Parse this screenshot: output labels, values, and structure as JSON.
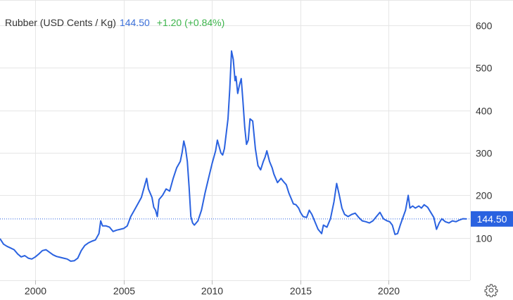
{
  "header": {
    "name": "Rubber (USD Cents / Kg)",
    "price": "144.50",
    "change": "+1.20 (+0.84%)"
  },
  "colors": {
    "line": "#2a62e0",
    "price_text": "#3b6fd8",
    "change_positive": "#3cb44b",
    "grid": "#e6e6e6",
    "label_bg": "#2a62e0",
    "label_text": "#ffffff",
    "axis_text": "#333333"
  },
  "settings_icon": "gear-icon",
  "chart_data": {
    "type": "line",
    "xlim": [
      1998,
      2024.6
    ],
    "ylim": [
      0,
      660
    ],
    "x_ticks": [
      2000,
      2005,
      2010,
      2015,
      2020
    ],
    "y_ticks": [
      100,
      200,
      300,
      400,
      500,
      600
    ],
    "grid": true,
    "y_axis_position": "right",
    "last_value_label": "144.50",
    "series": [
      {
        "points": [
          [
            1998.0,
            98
          ],
          [
            1998.2,
            85
          ],
          [
            1998.4,
            80
          ],
          [
            1998.6,
            76
          ],
          [
            1998.8,
            72
          ],
          [
            1999.0,
            62
          ],
          [
            1999.2,
            55
          ],
          [
            1999.4,
            58
          ],
          [
            1999.6,
            52
          ],
          [
            1999.8,
            50
          ],
          [
            2000.0,
            55
          ],
          [
            2000.2,
            62
          ],
          [
            2000.4,
            70
          ],
          [
            2000.6,
            72
          ],
          [
            2000.8,
            66
          ],
          [
            2001.0,
            60
          ],
          [
            2001.2,
            56
          ],
          [
            2001.4,
            54
          ],
          [
            2001.6,
            52
          ],
          [
            2001.8,
            50
          ],
          [
            2002.0,
            45
          ],
          [
            2002.2,
            46
          ],
          [
            2002.4,
            52
          ],
          [
            2002.6,
            70
          ],
          [
            2002.8,
            82
          ],
          [
            2003.0,
            88
          ],
          [
            2003.2,
            92
          ],
          [
            2003.4,
            95
          ],
          [
            2003.6,
            110
          ],
          [
            2003.7,
            140
          ],
          [
            2003.8,
            128
          ],
          [
            2004.0,
            128
          ],
          [
            2004.2,
            125
          ],
          [
            2004.4,
            115
          ],
          [
            2004.6,
            118
          ],
          [
            2004.8,
            120
          ],
          [
            2005.0,
            122
          ],
          [
            2005.2,
            128
          ],
          [
            2005.4,
            150
          ],
          [
            2005.6,
            165
          ],
          [
            2005.8,
            180
          ],
          [
            2006.0,
            195
          ],
          [
            2006.2,
            225
          ],
          [
            2006.3,
            240
          ],
          [
            2006.4,
            215
          ],
          [
            2006.6,
            195
          ],
          [
            2006.7,
            172
          ],
          [
            2006.8,
            165
          ],
          [
            2006.9,
            150
          ],
          [
            2007.0,
            190
          ],
          [
            2007.2,
            200
          ],
          [
            2007.4,
            215
          ],
          [
            2007.6,
            210
          ],
          [
            2007.8,
            240
          ],
          [
            2008.0,
            265
          ],
          [
            2008.2,
            280
          ],
          [
            2008.3,
            300
          ],
          [
            2008.4,
            328
          ],
          [
            2008.5,
            310
          ],
          [
            2008.6,
            280
          ],
          [
            2008.7,
            220
          ],
          [
            2008.8,
            150
          ],
          [
            2008.9,
            135
          ],
          [
            2009.0,
            130
          ],
          [
            2009.2,
            140
          ],
          [
            2009.4,
            165
          ],
          [
            2009.6,
            205
          ],
          [
            2009.8,
            240
          ],
          [
            2010.0,
            275
          ],
          [
            2010.2,
            305
          ],
          [
            2010.3,
            330
          ],
          [
            2010.5,
            300
          ],
          [
            2010.6,
            295
          ],
          [
            2010.7,
            310
          ],
          [
            2010.9,
            380
          ],
          [
            2011.0,
            450
          ],
          [
            2011.1,
            540
          ],
          [
            2011.2,
            520
          ],
          [
            2011.3,
            470
          ],
          [
            2011.35,
            480
          ],
          [
            2011.45,
            440
          ],
          [
            2011.55,
            460
          ],
          [
            2011.65,
            475
          ],
          [
            2011.75,
            420
          ],
          [
            2011.85,
            360
          ],
          [
            2011.95,
            320
          ],
          [
            2012.05,
            330
          ],
          [
            2012.15,
            380
          ],
          [
            2012.3,
            375
          ],
          [
            2012.45,
            310
          ],
          [
            2012.6,
            270
          ],
          [
            2012.75,
            260
          ],
          [
            2012.9,
            280
          ],
          [
            2013.0,
            290
          ],
          [
            2013.1,
            305
          ],
          [
            2013.25,
            280
          ],
          [
            2013.4,
            265
          ],
          [
            2013.5,
            250
          ],
          [
            2013.6,
            240
          ],
          [
            2013.7,
            230
          ],
          [
            2013.8,
            235
          ],
          [
            2013.9,
            240
          ],
          [
            2014.05,
            232
          ],
          [
            2014.2,
            225
          ],
          [
            2014.35,
            205
          ],
          [
            2014.5,
            190
          ],
          [
            2014.6,
            180
          ],
          [
            2014.75,
            178
          ],
          [
            2014.9,
            170
          ],
          [
            2015.0,
            160
          ],
          [
            2015.15,
            150
          ],
          [
            2015.35,
            148
          ],
          [
            2015.5,
            165
          ],
          [
            2015.65,
            155
          ],
          [
            2015.8,
            140
          ],
          [
            2016.0,
            120
          ],
          [
            2016.2,
            110
          ],
          [
            2016.3,
            130
          ],
          [
            2016.5,
            125
          ],
          [
            2016.7,
            145
          ],
          [
            2016.9,
            185
          ],
          [
            2017.05,
            228
          ],
          [
            2017.2,
            200
          ],
          [
            2017.35,
            170
          ],
          [
            2017.5,
            155
          ],
          [
            2017.7,
            150
          ],
          [
            2017.9,
            155
          ],
          [
            2018.1,
            158
          ],
          [
            2018.3,
            148
          ],
          [
            2018.5,
            140
          ],
          [
            2018.7,
            138
          ],
          [
            2018.9,
            135
          ],
          [
            2019.1,
            140
          ],
          [
            2019.3,
            150
          ],
          [
            2019.5,
            160
          ],
          [
            2019.7,
            145
          ],
          [
            2019.9,
            140
          ],
          [
            2020.05,
            138
          ],
          [
            2020.2,
            130
          ],
          [
            2020.35,
            108
          ],
          [
            2020.5,
            110
          ],
          [
            2020.65,
            130
          ],
          [
            2020.8,
            148
          ],
          [
            2020.95,
            165
          ],
          [
            2021.1,
            200
          ],
          [
            2021.2,
            170
          ],
          [
            2021.35,
            175
          ],
          [
            2021.5,
            170
          ],
          [
            2021.7,
            175
          ],
          [
            2021.85,
            170
          ],
          [
            2022.0,
            178
          ],
          [
            2022.2,
            172
          ],
          [
            2022.4,
            158
          ],
          [
            2022.55,
            148
          ],
          [
            2022.7,
            120
          ],
          [
            2022.85,
            135
          ],
          [
            2023.0,
            145
          ],
          [
            2023.2,
            138
          ],
          [
            2023.4,
            135
          ],
          [
            2023.6,
            140
          ],
          [
            2023.8,
            138
          ],
          [
            2024.0,
            142
          ],
          [
            2024.2,
            145
          ],
          [
            2024.4,
            144.5
          ]
        ]
      }
    ]
  }
}
